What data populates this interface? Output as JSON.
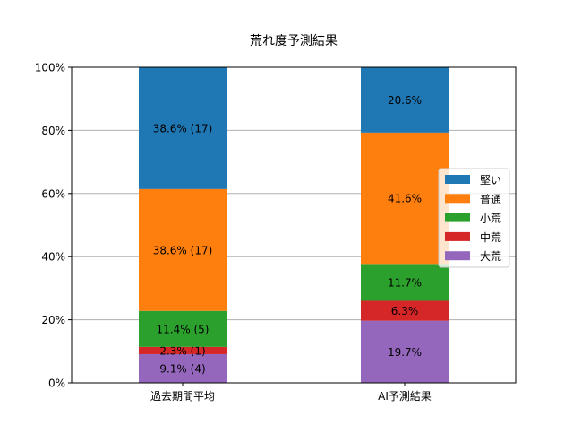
{
  "chart_data": {
    "type": "bar",
    "stacked": true,
    "title": "荒れ度予測結果",
    "xlabel": "",
    "ylabel": "",
    "ylim": [
      0,
      100
    ],
    "yticks": [
      "0%",
      "20%",
      "40%",
      "60%",
      "80%",
      "100%"
    ],
    "ytick_values": [
      0,
      20,
      40,
      60,
      80,
      100
    ],
    "grid": "y",
    "legend_position": "right",
    "categories": [
      "過去期間平均",
      "AI予測結果"
    ],
    "series": [
      {
        "name": "大荒",
        "color": "#9467bd",
        "values": [
          9.1,
          19.7
        ],
        "labels": [
          "9.1% (4)",
          "19.7%"
        ]
      },
      {
        "name": "中荒",
        "color": "#d62728",
        "values": [
          2.3,
          6.3
        ],
        "labels": [
          "2.3% (1)",
          "6.3%"
        ]
      },
      {
        "name": "小荒",
        "color": "#2ca02c",
        "values": [
          11.4,
          11.7
        ],
        "labels": [
          "11.4% (5)",
          "11.7%"
        ]
      },
      {
        "name": "普通",
        "color": "#ff7f0e",
        "values": [
          38.6,
          41.6
        ],
        "labels": [
          "38.6% (17)",
          "41.6%"
        ]
      },
      {
        "name": "堅い",
        "color": "#1f77b4",
        "values": [
          38.6,
          20.6
        ],
        "labels": [
          "38.6% (17)",
          "20.6%"
        ]
      }
    ],
    "legend_order": [
      "堅い",
      "普通",
      "小荒",
      "中荒",
      "大荒"
    ]
  }
}
